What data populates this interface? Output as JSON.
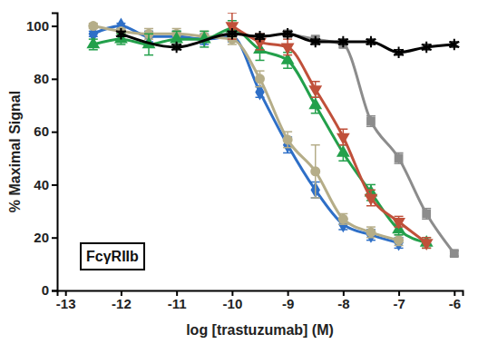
{
  "chart_data": {
    "type": "line",
    "x_label": "log [trastuzumab] (M)",
    "y_label": "% Maximal Signal",
    "annotations": [
      {
        "text": "FcγRIIb"
      }
    ],
    "xlim": [
      -13.15,
      -5.85
    ],
    "xticks": [
      -13,
      -12,
      -11,
      -10,
      -9,
      -8,
      -7,
      -6
    ],
    "ylim": [
      0,
      105
    ],
    "yticks": [
      0,
      20,
      40,
      60,
      80,
      100
    ],
    "grid": false,
    "series": [
      {
        "color": "#2e6fc7",
        "marker": "diamond",
        "line_style": "solid",
        "x": [
          -12.5,
          -12,
          -11.5,
          -11,
          -10.5,
          -10,
          -9.5,
          -9,
          -8.5,
          -8,
          -7.5,
          -7
        ],
        "values": [
          97,
          100,
          96,
          96,
          95,
          96,
          75,
          55,
          38,
          25,
          21,
          18
        ],
        "errors": [
          1,
          1,
          2,
          2,
          2,
          2,
          2,
          3,
          3,
          2,
          2,
          2
        ]
      },
      {
        "color": "#b5ad88",
        "marker": "circle",
        "line_style": "solid",
        "x": [
          -12.5,
          -12,
          -11.5,
          -11,
          -10.5,
          -10,
          -9.5,
          -9,
          -8.5,
          -8,
          -7.5,
          -7
        ],
        "values": [
          100,
          98,
          97,
          97,
          96,
          95,
          80,
          57,
          45,
          27,
          22,
          19
        ],
        "errors": [
          1,
          1,
          2,
          2,
          2,
          2,
          3,
          3,
          10,
          2,
          2,
          2
        ]
      },
      {
        "color": "#23a04b",
        "marker": "triangle",
        "line_style": "solid",
        "x": [
          -12.5,
          -12,
          -11.5,
          -11,
          -10.5,
          -10,
          -9.5,
          -9,
          -8.5,
          -8,
          -7.5,
          -7,
          -6.5
        ],
        "values": [
          93,
          95,
          93,
          95,
          95,
          99,
          91,
          87,
          70,
          52,
          37,
          23,
          18
        ],
        "errors": [
          2,
          2,
          4,
          3,
          3,
          3,
          4,
          3,
          3,
          3,
          3,
          2,
          2
        ]
      },
      {
        "color": "#c0503a",
        "marker": "triangle-down",
        "line_style": "solid",
        "x": [
          -10,
          -9.5,
          -9,
          -8.5,
          -8,
          -7.5,
          -7,
          -6.5
        ],
        "values": [
          100,
          94,
          92,
          76,
          58,
          35,
          26,
          18
        ],
        "errors": [
          5,
          3,
          3,
          3,
          3,
          3,
          2,
          2
        ]
      },
      {
        "color": "#8c8c8c",
        "marker": "square",
        "line_style": "solid",
        "x": [
          -9,
          -8.5,
          -8,
          -7.5,
          -7,
          -6.5,
          -6
        ],
        "values": [
          97,
          95,
          93,
          64,
          50,
          29,
          14
        ],
        "errors": [
          1,
          1,
          1,
          2,
          2,
          2,
          1
        ]
      },
      {
        "color": "#000000",
        "marker": "asterisk",
        "line_style": "solid",
        "x": [
          -12,
          -11,
          -10,
          -9.5,
          -9,
          -8.5,
          -8,
          -7.5,
          -7,
          -6.5,
          -6
        ],
        "values": [
          97,
          92,
          97,
          96,
          97,
          94,
          94,
          94,
          90,
          92,
          93
        ],
        "errors": [
          1,
          1,
          1,
          1,
          1,
          1,
          1,
          1,
          1,
          1,
          1
        ]
      }
    ]
  }
}
